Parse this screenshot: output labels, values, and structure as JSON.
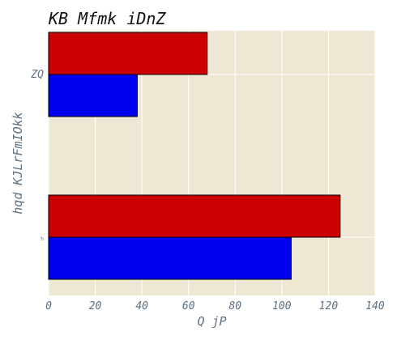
{
  "chart_data": {
    "type": "bar",
    "orientation": "horizontal",
    "title": "KB Mfmk iDnZ",
    "xlabel": "Q  jP",
    "ylabel": "hqd KJLrFmIOkk",
    "categories": [
      "ZQ",
      "h"
    ],
    "series": [
      {
        "color": "#cc0000",
        "values": [
          68,
          125
        ]
      },
      {
        "color": "#0000ee",
        "values": [
          38,
          104
        ]
      }
    ],
    "xlim": [
      0,
      140
    ],
    "xticks": [
      0,
      20,
      40,
      60,
      80,
      100,
      120,
      140
    ],
    "grid": true,
    "background": "#ede7d4"
  }
}
